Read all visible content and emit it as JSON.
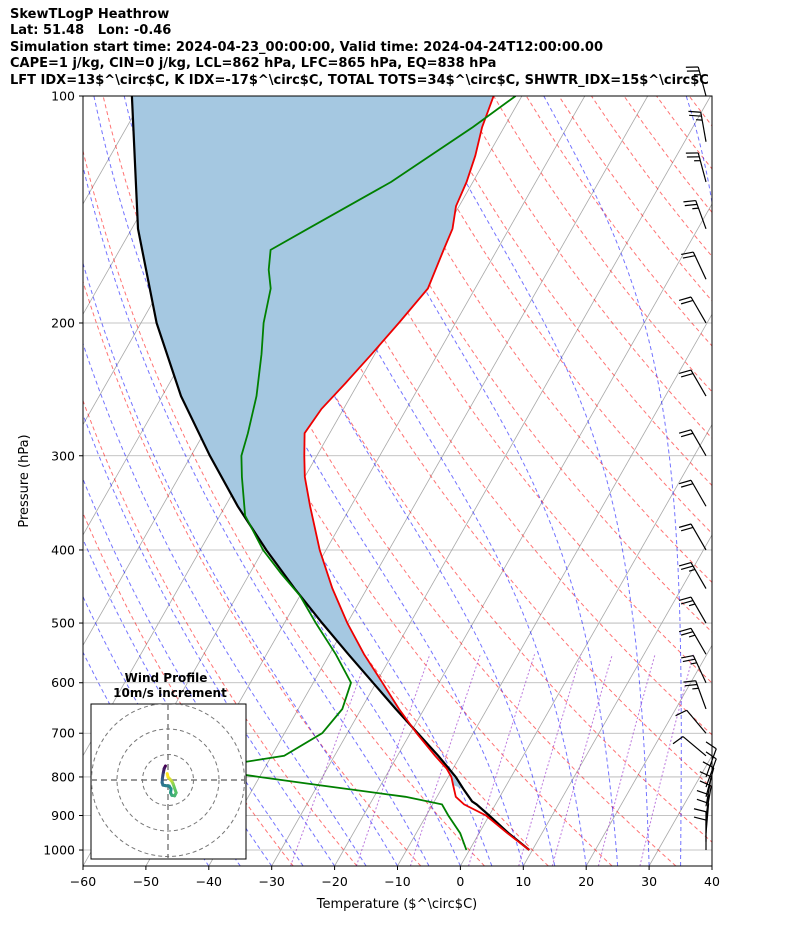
{
  "header": {
    "line1": "SkewTLogP Heathrow",
    "line2": "Lat: 51.48   Lon: -0.46",
    "line3": "Simulation start time: 2024-04-23_00:00:00, Valid time: 2024-04-24T12:00:00.00",
    "line4": "CAPE=1 j/kg, CIN=0 j/kg, LCL=862 hPa, LFC=865 hPa, EQ=838 hPa",
    "line5": "LFT IDX=13$^\\circ$C, K IDX=-17$^\\circ$C, TOTAL TOTS=34$^\\circ$C, SHWTR_IDX=15$^\\circ$C"
  },
  "colors": {
    "temperature": "#ee0000",
    "dewpoint": "#008000",
    "parcel": "#000000",
    "cape_fill": "#a5c8e1",
    "dry_adiabat": "#ff0000",
    "moist_adiabat": "#0000ff",
    "mixing_ratio": "#9932cc",
    "isotherm": "#808080",
    "hodograph_low": "#440154",
    "hodograph_high": "#fde725"
  },
  "chart_data": [
    {
      "type": "line",
      "chart_kind": "skew-T log-p",
      "xlabel": "Temperature ($^\\circ$C)",
      "ylabel": "Pressure (hPa)",
      "xlim": [
        -60,
        40
      ],
      "ylim": [
        1050,
        100
      ],
      "yscale": "log",
      "grid": true,
      "xticks": [
        "−60",
        "−50",
        "−40",
        "−30",
        "−20",
        "−10",
        "0",
        "10",
        "20",
        "30",
        "40"
      ],
      "yticks": [
        "100",
        "200",
        "300",
        "400",
        "500",
        "600",
        "700",
        "800",
        "900",
        "1000"
      ],
      "series": [
        {
          "role": "temperature",
          "points": [
            [
              1000,
              9.5
            ],
            [
              950,
              4.5
            ],
            [
              900,
              -0.5
            ],
            [
              870,
              -5.0
            ],
            [
              850,
              -7.0
            ],
            [
              820,
              -8.5
            ],
            [
              800,
              -9.5
            ],
            [
              780,
              -11.0
            ],
            [
              750,
              -14.0
            ],
            [
              700,
              -19.0
            ],
            [
              650,
              -24.0
            ],
            [
              600,
              -29.0
            ],
            [
              550,
              -34.5
            ],
            [
              500,
              -40.0
            ],
            [
              450,
              -45.5
            ],
            [
              400,
              -51.0
            ],
            [
              350,
              -56.5
            ],
            [
              320,
              -60.0
            ],
            [
              300,
              -62.0
            ],
            [
              280,
              -64.0
            ],
            [
              260,
              -63.5
            ],
            [
              240,
              -62.0
            ],
            [
              220,
              -60.5
            ],
            [
              200,
              -59.0
            ],
            [
              180,
              -57.5
            ],
            [
              160,
              -58.5
            ],
            [
              150,
              -59.0
            ],
            [
              140,
              -60.5
            ],
            [
              130,
              -61.0
            ],
            [
              120,
              -62.0
            ],
            [
              110,
              -63.5
            ],
            [
              100,
              -64.5
            ]
          ]
        },
        {
          "role": "dewpoint",
          "points": [
            [
              1000,
              -0.5
            ],
            [
              950,
              -3.0
            ],
            [
              900,
              -6.5
            ],
            [
              870,
              -8.5
            ],
            [
              850,
              -15.0
            ],
            [
              820,
              -30.0
            ],
            [
              800,
              -40.0
            ],
            [
              780,
              -50.0
            ],
            [
              750,
              -38.0
            ],
            [
              700,
              -34.0
            ],
            [
              650,
              -33.0
            ],
            [
              600,
              -34.0
            ],
            [
              550,
              -39.0
            ],
            [
              500,
              -45.0
            ],
            [
              460,
              -50.0
            ],
            [
              430,
              -55.0
            ],
            [
              400,
              -60.0
            ],
            [
              360,
              -66.0
            ],
            [
              320,
              -70.0
            ],
            [
              300,
              -72.0
            ],
            [
              280,
              -73.0
            ],
            [
              250,
              -75.0
            ],
            [
              220,
              -78.0
            ],
            [
              200,
              -80.5
            ],
            [
              180,
              -82.5
            ],
            [
              170,
              -84.5
            ],
            [
              160,
              -86.0
            ],
            [
              150,
              -82.0
            ],
            [
              130,
              -73.0
            ],
            [
              110,
              -65.0
            ],
            [
              100,
              -61.0
            ]
          ]
        },
        {
          "role": "parcel",
          "points": [
            [
              1000,
              9.5
            ],
            [
              950,
              4.7
            ],
            [
              900,
              0.0
            ],
            [
              870,
              -3.0
            ],
            [
              862,
              -4.0
            ],
            [
              830,
              -6.5
            ],
            [
              800,
              -8.8
            ],
            [
              750,
              -13.5
            ],
            [
              700,
              -18.8
            ],
            [
              650,
              -24.5
            ],
            [
              600,
              -30.5
            ],
            [
              550,
              -37.0
            ],
            [
              500,
              -44.0
            ],
            [
              450,
              -51.5
            ],
            [
              400,
              -59.5
            ],
            [
              350,
              -68.0
            ],
            [
              300,
              -77.0
            ],
            [
              250,
              -87.0
            ],
            [
              200,
              -97.5
            ],
            [
              150,
              -109.0
            ],
            [
              100,
              -122.0
            ]
          ]
        }
      ],
      "cape_shaded": true,
      "wind_barbs": [
        {
          "p": 1000,
          "spd": 10,
          "dir": 360
        },
        {
          "p": 975,
          "spd": 10,
          "dir": 360
        },
        {
          "p": 950,
          "spd": 10,
          "dir": 5
        },
        {
          "p": 925,
          "spd": 10,
          "dir": 5
        },
        {
          "p": 900,
          "spd": 10,
          "dir": 10
        },
        {
          "p": 875,
          "spd": 10,
          "dir": 10
        },
        {
          "p": 850,
          "spd": 10,
          "dir": 15
        },
        {
          "p": 825,
          "spd": 10,
          "dir": 20
        },
        {
          "p": 800,
          "spd": 10,
          "dir": 20
        },
        {
          "p": 750,
          "spd": 10,
          "dir": 310
        },
        {
          "p": 700,
          "spd": 10,
          "dir": 320
        },
        {
          "p": 650,
          "spd": 15,
          "dir": 340
        },
        {
          "p": 600,
          "spd": 15,
          "dir": 335
        },
        {
          "p": 550,
          "spd": 15,
          "dir": 330
        },
        {
          "p": 500,
          "spd": 15,
          "dir": 330
        },
        {
          "p": 450,
          "spd": 15,
          "dir": 330
        },
        {
          "p": 400,
          "spd": 20,
          "dir": 330
        },
        {
          "p": 350,
          "spd": 20,
          "dir": 330
        },
        {
          "p": 300,
          "spd": 20,
          "dir": 330
        },
        {
          "p": 250,
          "spd": 20,
          "dir": 330
        },
        {
          "p": 200,
          "spd": 20,
          "dir": 330
        },
        {
          "p": 175,
          "spd": 20,
          "dir": 335
        },
        {
          "p": 150,
          "spd": 15,
          "dir": 340
        },
        {
          "p": 130,
          "spd": 15,
          "dir": 345
        },
        {
          "p": 115,
          "spd": 15,
          "dir": 350
        },
        {
          "p": 100,
          "spd": 15,
          "dir": 345
        }
      ]
    },
    {
      "type": "line",
      "chart_kind": "hodograph",
      "title": "Wind Profile",
      "subtitle": "10m/s increment",
      "ring_step": 10,
      "rings": 3,
      "points": [
        [
          -1.0,
          5.5
        ],
        [
          -1.5,
          4.5
        ],
        [
          -1.8,
          3.0
        ],
        [
          -2.0,
          2.0
        ],
        [
          -2.2,
          0.5
        ],
        [
          -2.3,
          -1.0
        ],
        [
          -2.0,
          -2.0
        ],
        [
          -1.0,
          -2.2
        ],
        [
          0.5,
          -2.4
        ],
        [
          1.2,
          -3.5
        ],
        [
          1.0,
          -5.0
        ],
        [
          1.5,
          -6.0
        ],
        [
          2.6,
          -6.2
        ],
        [
          3.2,
          -5.0
        ],
        [
          2.5,
          -3.0
        ],
        [
          2.0,
          -1.5
        ],
        [
          1.5,
          -0.5
        ],
        [
          0.8,
          0.3
        ],
        [
          0.0,
          1.2
        ],
        [
          -0.3,
          2.5
        ]
      ]
    }
  ]
}
